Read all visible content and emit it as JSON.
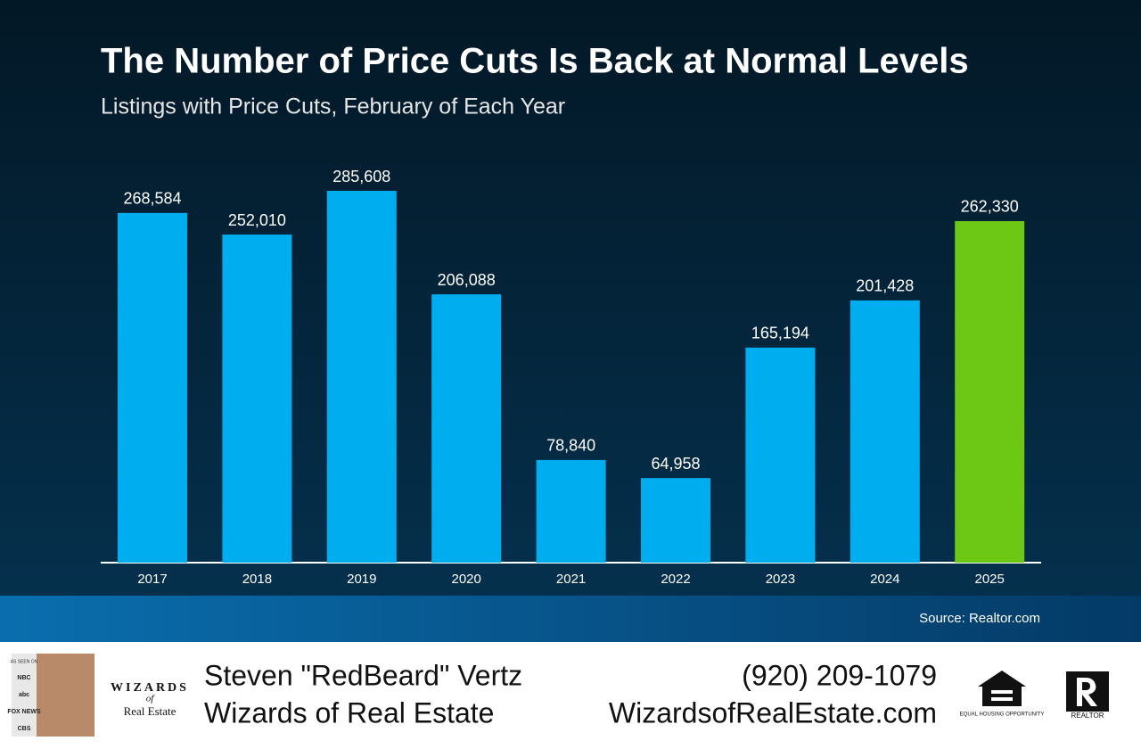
{
  "chart_data": {
    "type": "bar",
    "title": "The Number of Price Cuts Is Back at Normal Levels",
    "subtitle": "Listings with Price Cuts, February of Each Year",
    "categories": [
      "2017",
      "2018",
      "2019",
      "2020",
      "2021",
      "2022",
      "2023",
      "2024",
      "2025"
    ],
    "values": [
      268584,
      252010,
      285608,
      206088,
      78840,
      64958,
      165194,
      201428,
      262330
    ],
    "value_labels": [
      "268,584",
      "252,010",
      "285,608",
      "206,088",
      "78,840",
      "64,958",
      "165,194",
      "201,428",
      "262,330"
    ],
    "colors": [
      "#00aeef",
      "#00aeef",
      "#00aeef",
      "#00aeef",
      "#00aeef",
      "#00aeef",
      "#00aeef",
      "#00aeef",
      "#6dc815"
    ],
    "source": "Source: Realtor.com"
  },
  "footer": {
    "name": "Steven \"RedBeard\" Vertz",
    "company": "Wizards of Real Estate",
    "phone": "(920) 209-1079",
    "website": "WizardsofRealEstate.com",
    "logo_top": "WIZARDS",
    "logo_mid": "of",
    "logo_bottom": "Real Estate",
    "seen_on": "AS SEEN ON",
    "networks": [
      "NBC",
      "abc",
      "FOX NEWS",
      "CBS"
    ],
    "equal_housing": "EQUAL HOUSING OPPORTUNITY",
    "realtor": "REALTOR"
  }
}
